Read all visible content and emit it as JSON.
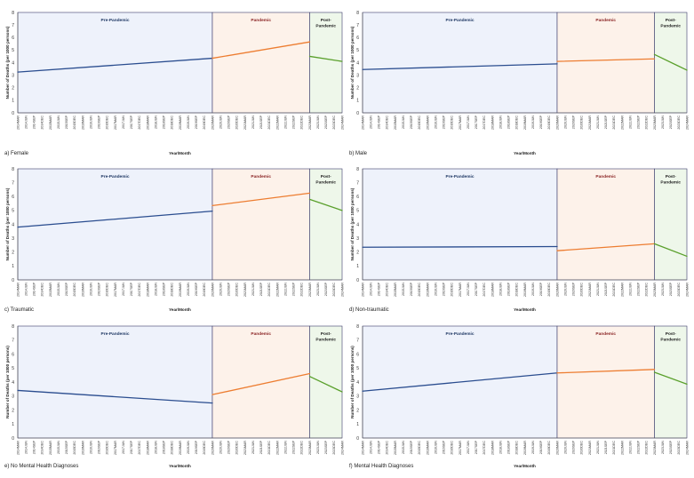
{
  "colors": {
    "pre_line": "#2a4d8f",
    "pandemic_line": "#ed7d31",
    "post_line": "#5aa02c",
    "pre_bg": "#eef2fb",
    "pandemic_bg": "#fdf2ea",
    "post_bg": "#eef7ea",
    "divider": "#3a3a6a",
    "pre_label": "#1f3864",
    "pandemic_label": "#8b2525",
    "post_label": "#222222"
  },
  "chart_data": [
    {
      "type": "line",
      "caption": "a) Female",
      "xlabel": "Year/Month",
      "ylabel": "Number of Deaths (per 1000 persons)",
      "ylim": [
        0,
        8
      ],
      "yticks": [
        0,
        1,
        2,
        3,
        4,
        5,
        6,
        7,
        8
      ],
      "grid": false,
      "x_labels": [
        "2014MAR",
        "2014JUN",
        "2014SEP",
        "2014DEC",
        "2015MAR",
        "2015JUN",
        "2015SEP",
        "2015DEC",
        "2016MAR",
        "2016JUN",
        "2016SEP",
        "2016DEC",
        "2017MAR",
        "2017JUN",
        "2017SEP",
        "2017DEC",
        "2018MAR",
        "2018JUN",
        "2018SEP",
        "2018DEC",
        "2019MAR",
        "2019JUN",
        "2019SEP",
        "2019DEC",
        "2020MAR",
        "2020JUN",
        "2020SEP",
        "2020DEC",
        "2021MAR",
        "2021JUN",
        "2021SEP",
        "2021DEC",
        "2022MAR",
        "2022JUN",
        "2022SEP",
        "2022DEC",
        "2023MAR",
        "2023JUN",
        "2023SEP",
        "2023DEC",
        "2024MAR"
      ],
      "periods": [
        {
          "name": "Pre-Pandemic",
          "label": "Pre-Pandemic",
          "start": "2014MAR",
          "end": "2020MAR"
        },
        {
          "name": "Pandemic",
          "label": "Pandemic",
          "start": "2020MAR",
          "end": "2023MAR"
        },
        {
          "name": "Post-Pandemic",
          "label": "Post-Pandemic",
          "start": "2023MAR",
          "end": "2024MAR"
        }
      ],
      "series": [
        {
          "period": "Pre-Pandemic",
          "x": [
            "2014MAR",
            "2020MAR"
          ],
          "y": [
            3.25,
            4.35
          ]
        },
        {
          "period": "Pandemic",
          "x": [
            "2020MAR",
            "2023MAR"
          ],
          "y": [
            4.35,
            5.65
          ]
        },
        {
          "period": "Post-Pandemic",
          "x": [
            "2023MAR",
            "2024MAR"
          ],
          "y": [
            4.5,
            4.1
          ]
        }
      ]
    },
    {
      "type": "line",
      "caption": "b) Male",
      "xlabel": "Year/Month",
      "ylabel": "Number of Deaths (per 1000 persons)",
      "ylim": [
        0,
        8
      ],
      "yticks": [
        0,
        1,
        2,
        3,
        4,
        5,
        6,
        7,
        8
      ],
      "grid": false,
      "x_labels": [
        "2014MAR",
        "2014JUN",
        "2014SEP",
        "2014DEC",
        "2015MAR",
        "2015JUN",
        "2015SEP",
        "2015DEC",
        "2016MAR",
        "2016JUN",
        "2016SEP",
        "2016DEC",
        "2017MAR",
        "2017JUN",
        "2017SEP",
        "2017DEC",
        "2018MAR",
        "2018JUN",
        "2018SEP",
        "2018DEC",
        "2019MAR",
        "2019JUN",
        "2019SEP",
        "2019DEC",
        "2020MAR",
        "2020JUN",
        "2020SEP",
        "2020DEC",
        "2021MAR",
        "2021JUN",
        "2021SEP",
        "2021DEC",
        "2022MAR",
        "2022JUN",
        "2022SEP",
        "2022DEC",
        "2023MAR",
        "2023JUN",
        "2023SEP",
        "2023DEC",
        "2024MAR"
      ],
      "periods": [
        {
          "name": "Pre-Pandemic",
          "label": "Pre-Pandemic",
          "start": "2014MAR",
          "end": "2020MAR"
        },
        {
          "name": "Pandemic",
          "label": "Pandemic",
          "start": "2020MAR",
          "end": "2023MAR"
        },
        {
          "name": "Post-Pandemic",
          "label": "Post-Pandemic",
          "start": "2023MAR",
          "end": "2024MAR"
        }
      ],
      "series": [
        {
          "period": "Pre-Pandemic",
          "x": [
            "2014MAR",
            "2020MAR"
          ],
          "y": [
            3.45,
            3.9
          ]
        },
        {
          "period": "Pandemic",
          "x": [
            "2020MAR",
            "2023MAR"
          ],
          "y": [
            4.1,
            4.3
          ]
        },
        {
          "period": "Post-Pandemic",
          "x": [
            "2023MAR",
            "2024MAR"
          ],
          "y": [
            4.65,
            3.4
          ]
        }
      ]
    },
    {
      "type": "line",
      "caption": "c) Traumatic",
      "xlabel": "Year/Month",
      "ylabel": "Number of Deaths (per 1000 persons)",
      "ylim": [
        0,
        8
      ],
      "yticks": [
        0,
        1,
        2,
        3,
        4,
        5,
        6,
        7,
        8
      ],
      "grid": false,
      "x_labels": [
        "2014MAR",
        "2014JUN",
        "2014SEP",
        "2014DEC",
        "2015MAR",
        "2015JUN",
        "2015SEP",
        "2015DEC",
        "2016MAR",
        "2016JUN",
        "2016SEP",
        "2016DEC",
        "2017MAR",
        "2017JUN",
        "2017SEP",
        "2017DEC",
        "2018MAR",
        "2018JUN",
        "2018SEP",
        "2018DEC",
        "2019MAR",
        "2019JUN",
        "2019SEP",
        "2019DEC",
        "2020MAR",
        "2020JUN",
        "2020SEP",
        "2020DEC",
        "2021MAR",
        "2021JUN",
        "2021SEP",
        "2021DEC",
        "2022MAR",
        "2022JUN",
        "2022SEP",
        "2022DEC",
        "2023MAR",
        "2023JUN",
        "2023SEP",
        "2023DEC",
        "2024MAR"
      ],
      "periods": [
        {
          "name": "Pre-Pandemic",
          "label": "Pre-Pandemic",
          "start": "2014MAR",
          "end": "2020MAR"
        },
        {
          "name": "Pandemic",
          "label": "Pandemic",
          "start": "2020MAR",
          "end": "2023MAR"
        },
        {
          "name": "Post-Pandemic",
          "label": "Post-Pandemic",
          "start": "2023MAR",
          "end": "2024MAR"
        }
      ],
      "series": [
        {
          "period": "Pre-Pandemic",
          "x": [
            "2014MAR",
            "2020MAR"
          ],
          "y": [
            3.8,
            4.95
          ]
        },
        {
          "period": "Pandemic",
          "x": [
            "2020MAR",
            "2023MAR"
          ],
          "y": [
            5.35,
            6.25
          ]
        },
        {
          "period": "Post-Pandemic",
          "x": [
            "2023MAR",
            "2024MAR"
          ],
          "y": [
            5.8,
            5.0
          ]
        }
      ]
    },
    {
      "type": "line",
      "caption": "d) Non-traumatic",
      "xlabel": "Year/Month",
      "ylabel": "Number of Deaths (per 1000 persons)",
      "ylim": [
        0,
        8
      ],
      "yticks": [
        0,
        1,
        2,
        3,
        4,
        5,
        6,
        7,
        8
      ],
      "grid": false,
      "x_labels": [
        "2014MAR",
        "2014JUN",
        "2014SEP",
        "2014DEC",
        "2015MAR",
        "2015JUN",
        "2015SEP",
        "2015DEC",
        "2016MAR",
        "2016JUN",
        "2016SEP",
        "2016DEC",
        "2017MAR",
        "2017JUN",
        "2017SEP",
        "2017DEC",
        "2018MAR",
        "2018JUN",
        "2018SEP",
        "2018DEC",
        "2019MAR",
        "2019JUN",
        "2019SEP",
        "2019DEC",
        "2020MAR",
        "2020JUN",
        "2020SEP",
        "2020DEC",
        "2021MAR",
        "2021JUN",
        "2021SEP",
        "2021DEC",
        "2022MAR",
        "2022JUN",
        "2022SEP",
        "2022DEC",
        "2023MAR",
        "2023JUN",
        "2023SEP",
        "2023DEC",
        "2024MAR"
      ],
      "periods": [
        {
          "name": "Pre-Pandemic",
          "label": "Pre-Pandemic",
          "start": "2014MAR",
          "end": "2020MAR"
        },
        {
          "name": "Pandemic",
          "label": "Pandemic",
          "start": "2020MAR",
          "end": "2023MAR"
        },
        {
          "name": "Post-Pandemic",
          "label": "Post-Pandemic",
          "start": "2023MAR",
          "end": "2024MAR"
        }
      ],
      "series": [
        {
          "period": "Pre-Pandemic",
          "x": [
            "2014MAR",
            "2020MAR"
          ],
          "y": [
            2.35,
            2.4
          ]
        },
        {
          "period": "Pandemic",
          "x": [
            "2020MAR",
            "2023MAR"
          ],
          "y": [
            2.1,
            2.6
          ]
        },
        {
          "period": "Post-Pandemic",
          "x": [
            "2023MAR",
            "2024MAR"
          ],
          "y": [
            2.6,
            1.7
          ]
        }
      ]
    },
    {
      "type": "line",
      "caption": "e) No Mental Health Diagnoses",
      "xlabel": "Year/Month",
      "ylabel": "Number of Deaths (per 1000 persons)",
      "ylim": [
        0,
        8
      ],
      "yticks": [
        0,
        1,
        2,
        3,
        4,
        5,
        6,
        7,
        8
      ],
      "grid": false,
      "x_labels": [
        "2014MAR",
        "2014JUN",
        "2014SEP",
        "2014DEC",
        "2015MAR",
        "2015JUN",
        "2015SEP",
        "2015DEC",
        "2016MAR",
        "2016JUN",
        "2016SEP",
        "2016DEC",
        "2017MAR",
        "2017JUN",
        "2017SEP",
        "2017DEC",
        "2018MAR",
        "2018JUN",
        "2018SEP",
        "2018DEC",
        "2019MAR",
        "2019JUN",
        "2019SEP",
        "2019DEC",
        "2020MAR",
        "2020JUN",
        "2020SEP",
        "2020DEC",
        "2021MAR",
        "2021JUN",
        "2021SEP",
        "2021DEC",
        "2022MAR",
        "2022JUN",
        "2022SEP",
        "2022DEC",
        "2023MAR",
        "2023JUN",
        "2023SEP",
        "2023DEC",
        "2024MAR"
      ],
      "periods": [
        {
          "name": "Pre-Pandemic",
          "label": "Pre-Pandemic",
          "start": "2014MAR",
          "end": "2020MAR"
        },
        {
          "name": "Pandemic",
          "label": "Pandemic",
          "start": "2020MAR",
          "end": "2023MAR"
        },
        {
          "name": "Post-Pandemic",
          "label": "Post-Pandemic",
          "start": "2023MAR",
          "end": "2024MAR"
        }
      ],
      "series": [
        {
          "period": "Pre-Pandemic",
          "x": [
            "2014MAR",
            "2020MAR"
          ],
          "y": [
            3.4,
            2.5
          ]
        },
        {
          "period": "Pandemic",
          "x": [
            "2020MAR",
            "2023MAR"
          ],
          "y": [
            3.1,
            4.6
          ]
        },
        {
          "period": "Post-Pandemic",
          "x": [
            "2023MAR",
            "2024MAR"
          ],
          "y": [
            4.4,
            3.3
          ]
        }
      ]
    },
    {
      "type": "line",
      "caption": "f) Mental Health Diagnoses",
      "xlabel": "Year/Month",
      "ylabel": "Number of Deaths (per 1000 persons)",
      "ylim": [
        0,
        8
      ],
      "yticks": [
        0,
        1,
        2,
        3,
        4,
        5,
        6,
        7,
        8
      ],
      "grid": false,
      "x_labels": [
        "2014MAR",
        "2014JUN",
        "2014SEP",
        "2014DEC",
        "2015MAR",
        "2015JUN",
        "2015SEP",
        "2015DEC",
        "2016MAR",
        "2016JUN",
        "2016SEP",
        "2016DEC",
        "2017MAR",
        "2017JUN",
        "2017SEP",
        "2017DEC",
        "2018MAR",
        "2018JUN",
        "2018SEP",
        "2018DEC",
        "2019MAR",
        "2019JUN",
        "2019SEP",
        "2019DEC",
        "2020MAR",
        "2020JUN",
        "2020SEP",
        "2020DEC",
        "2021MAR",
        "2021JUN",
        "2021SEP",
        "2021DEC",
        "2022MAR",
        "2022JUN",
        "2022SEP",
        "2022DEC",
        "2023MAR",
        "2023JUN",
        "2023SEP",
        "2023DEC",
        "2024MAR"
      ],
      "periods": [
        {
          "name": "Pre-Pandemic",
          "label": "Pre-Pandemic",
          "start": "2014MAR",
          "end": "2020MAR"
        },
        {
          "name": "Pandemic",
          "label": "Pandemic",
          "start": "2020MAR",
          "end": "2023MAR"
        },
        {
          "name": "Post-Pandemic",
          "label": "Post-Pandemic",
          "start": "2023MAR",
          "end": "2024MAR"
        }
      ],
      "series": [
        {
          "period": "Pre-Pandemic",
          "x": [
            "2014MAR",
            "2020MAR"
          ],
          "y": [
            3.35,
            4.65
          ]
        },
        {
          "period": "Pandemic",
          "x": [
            "2020MAR",
            "2023MAR"
          ],
          "y": [
            4.65,
            4.9
          ]
        },
        {
          "period": "Post-Pandemic",
          "x": [
            "2023MAR",
            "2024MAR"
          ],
          "y": [
            4.7,
            3.85
          ]
        }
      ]
    }
  ]
}
